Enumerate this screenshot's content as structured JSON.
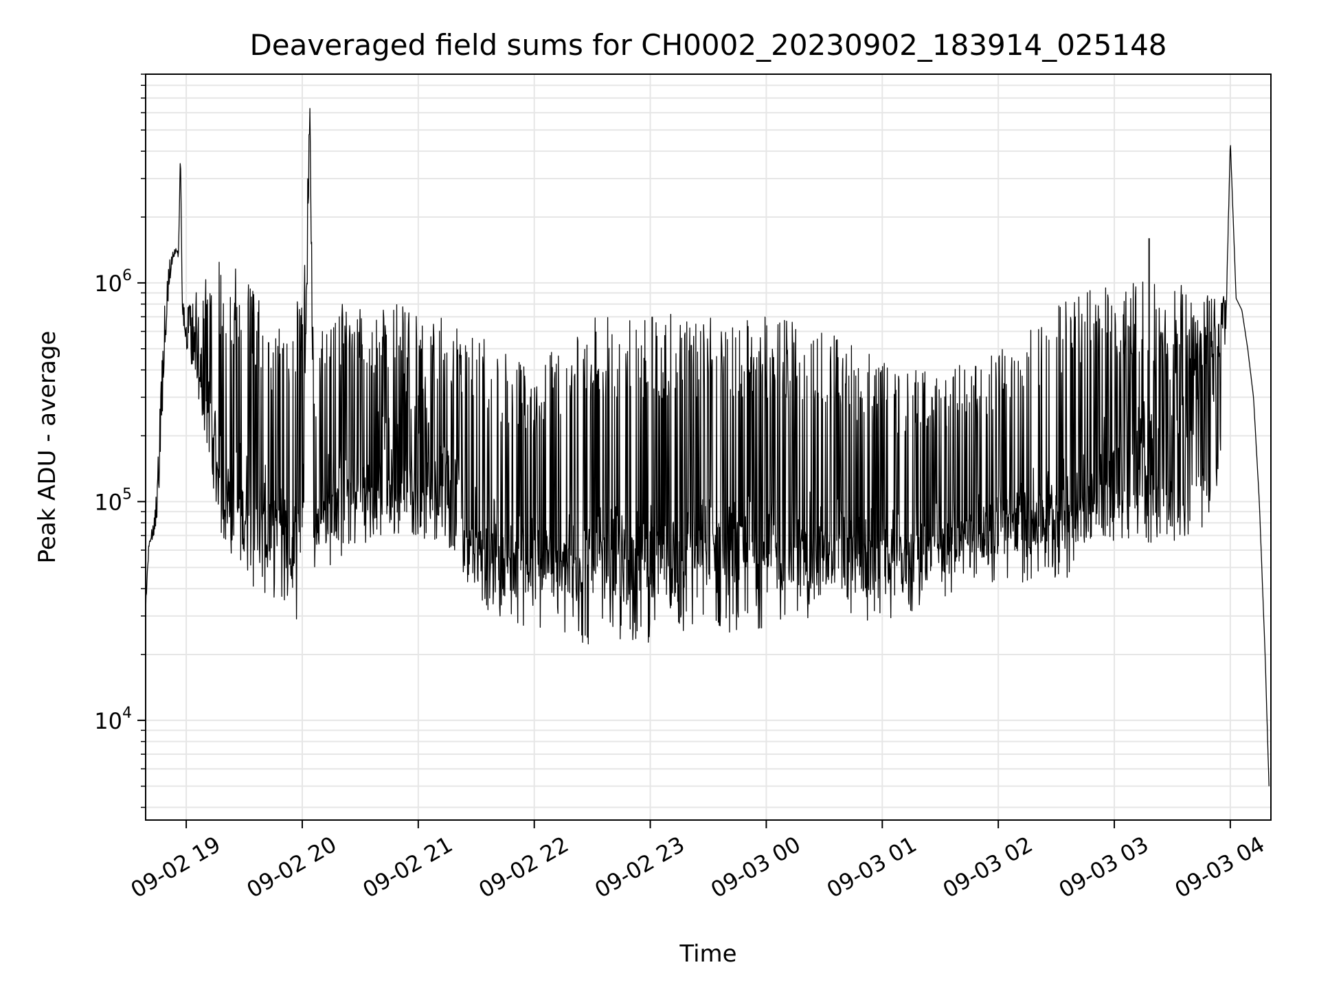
{
  "chart_data": {
    "type": "line",
    "title": "Deaveraged field sums for CH0002_20230902_183914_025148",
    "xlabel": "Time",
    "ylabel": "Peak ADU - average",
    "y_scale": "log",
    "ylim": [
      3500,
      9000000
    ],
    "xlim": [
      "2023-09-02 18:39",
      "2023-09-03 04:21"
    ],
    "grid": true,
    "line_color": "#000000",
    "grid_color": "#e6e6e6",
    "x_ticks": [
      {
        "label": "09-02 19",
        "value": "2023-09-02 19:00"
      },
      {
        "label": "09-02 20",
        "value": "2023-09-02 20:00"
      },
      {
        "label": "09-02 21",
        "value": "2023-09-02 21:00"
      },
      {
        "label": "09-02 22",
        "value": "2023-09-02 22:00"
      },
      {
        "label": "09-02 23",
        "value": "2023-09-02 23:00"
      },
      {
        "label": "09-03 00",
        "value": "2023-09-03 00:00"
      },
      {
        "label": "09-03 01",
        "value": "2023-09-03 01:00"
      },
      {
        "label": "09-03 02",
        "value": "2023-09-03 02:00"
      },
      {
        "label": "09-03 03",
        "value": "2023-09-03 03:00"
      },
      {
        "label": "09-03 04",
        "value": "2023-09-03 04:00"
      }
    ],
    "y_ticks": [
      {
        "base": "10",
        "exp": "4",
        "value": 10000
      },
      {
        "base": "10",
        "exp": "5",
        "value": 100000
      },
      {
        "base": "10",
        "exp": "6",
        "value": 1000000
      }
    ],
    "series": [
      {
        "x": [
          "2023-09-02 18:39",
          "2023-09-02 18:40",
          "2023-09-02 18:41",
          "2023-09-02 18:43",
          "2023-09-02 18:45",
          "2023-09-02 18:47",
          "2023-09-02 18:49",
          "2023-09-02 18:51",
          "2023-09-02 18:53",
          "2023-09-02 18:55",
          "2023-09-02 18:56",
          "2023-09-02 18:57",
          "2023-09-02 18:58",
          "2023-09-02 19:00",
          "2023-09-02 19:04",
          "2023-09-02 19:08",
          "2023-09-02 19:12",
          "2023-09-02 19:16",
          "2023-09-02 19:20",
          "2023-09-02 19:25",
          "2023-09-02 19:30",
          "2023-09-02 19:35",
          "2023-09-02 19:40",
          "2023-09-02 19:45",
          "2023-09-02 19:50",
          "2023-09-02 19:55",
          "2023-09-02 20:00",
          "2023-09-02 20:04",
          "2023-09-02 20:06",
          "2023-09-02 20:10",
          "2023-09-02 20:15",
          "2023-09-02 20:20",
          "2023-09-02 20:25",
          "2023-09-02 20:30",
          "2023-09-02 20:40",
          "2023-09-02 20:50",
          "2023-09-02 21:00",
          "2023-09-02 21:10",
          "2023-09-02 21:20",
          "2023-09-02 21:30",
          "2023-09-02 21:40",
          "2023-09-02 21:50",
          "2023-09-02 22:00",
          "2023-09-02 22:10",
          "2023-09-02 22:20",
          "2023-09-02 22:30",
          "2023-09-02 22:40",
          "2023-09-02 22:50",
          "2023-09-02 23:00",
          "2023-09-02 23:10",
          "2023-09-02 23:20",
          "2023-09-02 23:30",
          "2023-09-02 23:40",
          "2023-09-02 23:50",
          "2023-09-03 00:00",
          "2023-09-03 00:10",
          "2023-09-03 00:20",
          "2023-09-03 00:30",
          "2023-09-03 00:40",
          "2023-09-03 00:50",
          "2023-09-03 01:00",
          "2023-09-03 01:10",
          "2023-09-03 01:20",
          "2023-09-03 01:30",
          "2023-09-03 01:40",
          "2023-09-03 01:50",
          "2023-09-03 02:00",
          "2023-09-03 02:10",
          "2023-09-03 02:20",
          "2023-09-03 02:30",
          "2023-09-03 02:40",
          "2023-09-03 02:50",
          "2023-09-03 03:00",
          "2023-09-03 03:10",
          "2023-09-03 03:20",
          "2023-09-03 03:30",
          "2023-09-03 03:40",
          "2023-09-03 03:50",
          "2023-09-03 03:55",
          "2023-09-03 03:58",
          "2023-09-03 04:00",
          "2023-09-03 04:03",
          "2023-09-03 04:06",
          "2023-09-03 04:09",
          "2023-09-03 04:12",
          "2023-09-03 04:15",
          "2023-09-03 04:18",
          "2023-09-03 04:20"
        ],
        "y": [
          30000,
          50000,
          65000,
          70000,
          90000,
          200000,
          500000,
          900000,
          1300000,
          1400000,
          1300000,
          4000000,
          800000,
          600000,
          500000,
          400000,
          250000,
          150000,
          120000,
          100000,
          90000,
          80000,
          75000,
          70000,
          65000,
          60000,
          55000,
          6500000,
          75000,
          90000,
          95000,
          100000,
          110000,
          120000,
          150000,
          180000,
          200000,
          150000,
          100000,
          70000,
          55000,
          50000,
          48000,
          45000,
          45000,
          45000,
          45000,
          46000,
          47000,
          48000,
          50000,
          52000,
          52000,
          53000,
          55000,
          55000,
          55000,
          55000,
          55000,
          52000,
          50000,
          52000,
          55000,
          60000,
          65000,
          70000,
          72000,
          75000,
          78000,
          80000,
          90000,
          120000,
          150000,
          200000,
          250000,
          300000,
          350000,
          450000,
          600000,
          800000,
          4500000,
          850000,
          750000,
          500000,
          300000,
          100000,
          20000,
          5000
        ],
        "y_high": [
          35000,
          55000,
          70000,
          80000,
          120000,
          400000,
          900000,
          1300000,
          1400000,
          1450000,
          1400000,
          4000000,
          900000,
          800000,
          900000,
          1000000,
          1200000,
          1300000,
          1300000,
          1200000,
          1100000,
          900000,
          800000,
          700000,
          700000,
          800000,
          900000,
          6500000,
          300000,
          600000,
          850000,
          850000,
          850000,
          800000,
          800000,
          800000,
          700000,
          700000,
          650000,
          600000,
          500000,
          450000,
          400000,
          500000,
          650000,
          700000,
          700000,
          700000,
          700000,
          720000,
          720000,
          700000,
          700000,
          700000,
          700000,
          680000,
          650000,
          600000,
          550000,
          500000,
          450000,
          420000,
          400000,
          400000,
          420000,
          450000,
          500000,
          600000,
          700000,
          800000,
          900000,
          950000,
          1000000,
          1050000,
          1050000,
          1000000,
          950000,
          900000,
          900000,
          900000,
          4500000,
          850000,
          750000,
          500000,
          300000,
          100000,
          20000,
          5000
        ],
        "y_low": [
          30000,
          50000,
          65000,
          70000,
          90000,
          200000,
          500000,
          900000,
          1300000,
          1400000,
          1300000,
          4000000,
          700000,
          500000,
          350000,
          250000,
          150000,
          90000,
          75000,
          65000,
          60000,
          55000,
          50000,
          50000,
          50000,
          50000,
          50000,
          6500000,
          60000,
          65000,
          65000,
          65000,
          65000,
          65000,
          65000,
          70000,
          70000,
          60000,
          50000,
          42000,
          38000,
          36000,
          34000,
          34000,
          35000,
          36000,
          36000,
          37000,
          38000,
          38000,
          38000,
          38000,
          38000,
          38000,
          38000,
          38000,
          38000,
          38000,
          38000,
          37000,
          36000,
          38000,
          40000,
          45000,
          50000,
          55000,
          58000,
          60000,
          60000,
          62000,
          65000,
          65000,
          65000,
          65000,
          65000,
          65000,
          70000,
          80000,
          150000,
          700000,
          4500000,
          850000,
          750000,
          500000,
          300000,
          100000,
          20000,
          5000
        ],
        "spikes": [
          {
            "x": "2023-09-02 18:57",
            "y": 4000000
          },
          {
            "x": "2023-09-02 20:04",
            "y": 6500000
          },
          {
            "x": "2023-09-02 23:01",
            "y": 700000
          },
          {
            "x": "2023-09-03 03:18",
            "y": 1600000
          },
          {
            "x": "2023-09-03 04:00",
            "y": 4500000
          }
        ]
      }
    ]
  }
}
